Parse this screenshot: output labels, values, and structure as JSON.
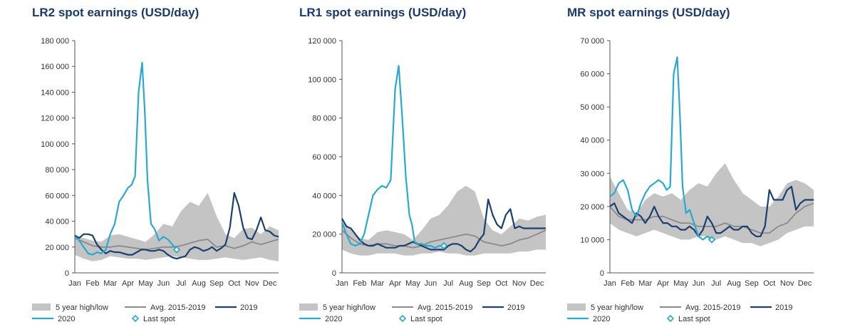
{
  "colors": {
    "title": "#1a3a6e",
    "band": "#c4c4c4",
    "avg": "#8a8a8a",
    "y2019": "#1b3f6e",
    "y2020": "#2aa9cf",
    "axis": "#555555",
    "text": "#333333"
  },
  "legend_labels": {
    "band": "5 year high/low",
    "avg": "Avg. 2015-2019",
    "y2019": "2019",
    "y2020": "2020",
    "last": "Last spot"
  },
  "chart_data": [
    {
      "type": "line",
      "title": "LR2 spot earnings (USD/day)",
      "xlabel": "",
      "ylabel": "",
      "x_categories": [
        "Jan",
        "Feb",
        "Mar",
        "Apr",
        "May",
        "Jun",
        "Jul",
        "Aug",
        "Sep",
        "Oct",
        "Nov",
        "Dec"
      ],
      "ylim": [
        0,
        180000
      ],
      "yticks": [
        0,
        20000,
        40000,
        60000,
        80000,
        100000,
        120000,
        140000,
        160000,
        180000
      ],
      "ytick_labels": [
        "0",
        "20 000",
        "40 000",
        "60 000",
        "80 000",
        "100 000",
        "120 000",
        "140 000",
        "160 000",
        "180 000"
      ],
      "grid": false,
      "legend_position": "bottom",
      "band": {
        "name": "5 year high/low",
        "x": [
          1,
          1.5,
          2,
          2.5,
          3,
          3.5,
          4,
          4.5,
          5,
          5.5,
          6,
          6.5,
          7,
          7.5,
          8,
          8.5,
          9,
          9.5,
          10,
          10.5,
          11,
          11.5,
          12,
          12.5
        ],
        "high": [
          29000,
          27000,
          25000,
          24000,
          29000,
          30000,
          28000,
          26000,
          24000,
          30000,
          38000,
          36000,
          48000,
          55000,
          52000,
          62000,
          44000,
          30000,
          27000,
          34000,
          35000,
          30000,
          36000,
          33000
        ],
        "low": [
          14000,
          11000,
          9000,
          10000,
          13000,
          12000,
          11000,
          11000,
          10000,
          11000,
          12000,
          13000,
          12000,
          11000,
          10000,
          10000,
          11000,
          12000,
          11000,
          10000,
          11000,
          12000,
          10000,
          9000
        ]
      },
      "series": [
        {
          "name": "Avg. 2015-2019",
          "x": [
            1,
            1.5,
            2,
            2.5,
            3,
            3.5,
            4,
            4.5,
            5,
            5.5,
            6,
            6.5,
            7,
            7.5,
            8,
            8.5,
            9,
            9.5,
            10,
            10.5,
            11,
            11.5,
            12,
            12.5
          ],
          "values": [
            27000,
            24000,
            21000,
            20000,
            20000,
            21000,
            20000,
            19000,
            18000,
            19000,
            20000,
            20000,
            21000,
            23000,
            25000,
            26000,
            20000,
            21000,
            19000,
            21000,
            24000,
            22000,
            24000,
            26000
          ]
        },
        {
          "name": "2019",
          "x": [
            1,
            1.25,
            1.5,
            1.75,
            2,
            2.25,
            2.5,
            2.75,
            3,
            3.25,
            3.5,
            3.75,
            4,
            4.25,
            4.5,
            4.75,
            5,
            5.25,
            5.5,
            5.75,
            6,
            6.25,
            6.5,
            6.75,
            7,
            7.25,
            7.5,
            7.75,
            8,
            8.25,
            8.5,
            8.75,
            9,
            9.25,
            9.5,
            9.75,
            10,
            10.25,
            10.5,
            10.75,
            11,
            11.25,
            11.5,
            11.75,
            12,
            12.25,
            12.5
          ],
          "values": [
            29000,
            27000,
            30000,
            30000,
            29000,
            22000,
            18000,
            15000,
            17000,
            16000,
            16000,
            15000,
            14000,
            14000,
            16000,
            18000,
            18000,
            17000,
            17000,
            18000,
            17000,
            14000,
            12000,
            11000,
            12000,
            13000,
            18000,
            20000,
            19000,
            17000,
            18000,
            20000,
            17000,
            19000,
            22000,
            35000,
            62000,
            52000,
            35000,
            27000,
            26000,
            33000,
            43000,
            33000,
            32000,
            29000,
            28000
          ]
        },
        {
          "name": "2020",
          "x": [
            1,
            1.25,
            1.5,
            1.75,
            2,
            2.25,
            2.5,
            2.75,
            3,
            3.25,
            3.5,
            3.75,
            4,
            4.2,
            4.4,
            4.6,
            4.8,
            4.95,
            5.1,
            5.3,
            5.5,
            5.75,
            6,
            6.25,
            6.5,
            6.75
          ],
          "values": [
            28000,
            25000,
            20000,
            15000,
            14000,
            16000,
            15000,
            18000,
            30000,
            38000,
            55000,
            60000,
            66000,
            68000,
            75000,
            140000,
            163000,
            125000,
            72000,
            38000,
            34000,
            25000,
            28000,
            26000,
            22000,
            18000
          ]
        },
        {
          "name": "Last spot",
          "x": [
            6.75
          ],
          "values": [
            18000
          ]
        }
      ]
    },
    {
      "type": "line",
      "title": "LR1 spot earnings (USD/day)",
      "xlabel": "",
      "ylabel": "",
      "x_categories": [
        "Jan",
        "Feb",
        "Mar",
        "Apr",
        "May",
        "Jun",
        "Jul",
        "Aug",
        "Sep",
        "Oct",
        "Nov",
        "Dec"
      ],
      "ylim": [
        0,
        120000
      ],
      "yticks": [
        0,
        20000,
        40000,
        60000,
        80000,
        100000,
        120000
      ],
      "ytick_labels": [
        "0",
        "20 000",
        "40 000",
        "60 000",
        "80 000",
        "100 000",
        "120 000"
      ],
      "grid": false,
      "legend_position": "bottom",
      "band": {
        "name": "5 year high/low",
        "x": [
          1,
          1.5,
          2,
          2.5,
          3,
          3.5,
          4,
          4.5,
          5,
          5.5,
          6,
          6.5,
          7,
          7.5,
          8,
          8.5,
          9,
          9.5,
          10,
          10.5,
          11,
          11.5,
          12,
          12.5
        ],
        "high": [
          26000,
          23000,
          18000,
          17000,
          21000,
          22000,
          21000,
          20000,
          17000,
          22000,
          28000,
          30000,
          35000,
          42000,
          45000,
          42000,
          28000,
          22000,
          20000,
          24000,
          28000,
          27000,
          29000,
          30000
        ],
        "low": [
          12000,
          10000,
          9000,
          9000,
          10000,
          10000,
          10000,
          9000,
          9000,
          10000,
          10000,
          11000,
          10000,
          10000,
          9000,
          9000,
          10000,
          10000,
          10000,
          10000,
          11000,
          11000,
          12000,
          12000
        ]
      },
      "series": [
        {
          "name": "Avg. 2015-2019",
          "x": [
            1,
            1.5,
            2,
            2.5,
            3,
            3.5,
            4,
            4.5,
            5,
            5.5,
            6,
            6.5,
            7,
            7.5,
            8,
            8.5,
            9,
            9.5,
            10,
            10.5,
            11,
            11.5,
            12,
            12.5
          ],
          "values": [
            22000,
            18000,
            15000,
            14000,
            15000,
            15000,
            14000,
            14000,
            13000,
            14000,
            16000,
            17000,
            18000,
            19000,
            20000,
            19000,
            16000,
            15000,
            14000,
            15000,
            17000,
            18000,
            20000,
            22000
          ]
        },
        {
          "name": "2019",
          "x": [
            1,
            1.25,
            1.5,
            1.75,
            2,
            2.25,
            2.5,
            2.75,
            3,
            3.25,
            3.5,
            3.75,
            4,
            4.25,
            4.5,
            4.75,
            5,
            5.25,
            5.5,
            5.75,
            6,
            6.25,
            6.5,
            6.75,
            7,
            7.25,
            7.5,
            7.75,
            8,
            8.25,
            8.5,
            8.75,
            9,
            9.25,
            9.5,
            9.75,
            10,
            10.25,
            10.5,
            10.75,
            11,
            11.25,
            11.5,
            11.75,
            12,
            12.25,
            12.5
          ],
          "values": [
            28000,
            24000,
            23000,
            20000,
            17000,
            15000,
            14000,
            14000,
            15000,
            14000,
            13000,
            13000,
            13000,
            14000,
            14000,
            15000,
            16000,
            15000,
            14000,
            13000,
            12000,
            12000,
            12000,
            12000,
            14000,
            15000,
            15000,
            14000,
            12000,
            11000,
            13000,
            17000,
            20000,
            38000,
            30000,
            25000,
            23000,
            30000,
            33000,
            23000,
            24000,
            23000,
            23000,
            23000,
            23000,
            23000,
            23000
          ]
        },
        {
          "name": "2020",
          "x": [
            1,
            1.25,
            1.5,
            1.75,
            2,
            2.25,
            2.5,
            2.75,
            3,
            3.25,
            3.5,
            3.75,
            4,
            4.2,
            4.4,
            4.6,
            4.8,
            4.95,
            5.1,
            5.3,
            5.5,
            5.75,
            6,
            6.25,
            6.5,
            6.75
          ],
          "values": [
            26000,
            20000,
            15000,
            14000,
            15000,
            20000,
            30000,
            40000,
            43000,
            45000,
            44000,
            48000,
            95000,
            107000,
            80000,
            50000,
            30000,
            25000,
            16000,
            15000,
            15000,
            14000,
            14000,
            13000,
            14000,
            14000
          ]
        },
        {
          "name": "Last spot",
          "x": [
            6.75
          ],
          "values": [
            14000
          ]
        }
      ]
    },
    {
      "type": "line",
      "title": "MR spot earnings (USD/day)",
      "xlabel": "",
      "ylabel": "",
      "x_categories": [
        "Jan",
        "Feb",
        "Mar",
        "Apr",
        "May",
        "Jun",
        "Jul",
        "Aug",
        "Sep",
        "Oct",
        "Nov",
        "Dec"
      ],
      "ylim": [
        0,
        70000
      ],
      "yticks": [
        0,
        10000,
        20000,
        30000,
        40000,
        50000,
        60000,
        70000
      ],
      "ytick_labels": [
        "0",
        "10 000",
        "20 000",
        "30 000",
        "40 000",
        "50 000",
        "60 000",
        "70 000"
      ],
      "grid": false,
      "legend_position": "bottom",
      "band": {
        "name": "5 year high/low",
        "x": [
          1,
          1.5,
          2,
          2.5,
          3,
          3.5,
          4,
          4.5,
          5,
          5.5,
          6,
          6.5,
          7,
          7.5,
          8,
          8.5,
          9,
          9.5,
          10,
          10.5,
          11,
          11.5,
          12,
          12.5
        ],
        "high": [
          29000,
          24000,
          19000,
          18000,
          22000,
          24000,
          23000,
          24000,
          22000,
          25000,
          27000,
          26000,
          30000,
          33000,
          28000,
          24000,
          22000,
          20000,
          20000,
          23000,
          27000,
          28000,
          27000,
          25000
        ],
        "low": [
          15000,
          13000,
          12000,
          11000,
          12000,
          13000,
          12000,
          11000,
          10000,
          10000,
          11000,
          11000,
          10000,
          11000,
          10000,
          9000,
          9000,
          8000,
          9000,
          10000,
          12000,
          13000,
          14000,
          14000
        ]
      },
      "series": [
        {
          "name": "Avg. 2015-2019",
          "x": [
            1,
            1.5,
            2,
            2.5,
            3,
            3.5,
            4,
            4.5,
            5,
            5.5,
            6,
            6.5,
            7,
            7.5,
            8,
            8.5,
            9,
            9.5,
            10,
            10.5,
            11,
            11.5,
            12,
            12.5
          ],
          "values": [
            20000,
            17000,
            16000,
            16000,
            16000,
            17000,
            17000,
            16000,
            15000,
            15000,
            14000,
            14000,
            14000,
            15000,
            14000,
            14000,
            13000,
            12000,
            12000,
            14000,
            15000,
            18000,
            20000,
            21000
          ]
        },
        {
          "name": "2019",
          "x": [
            1,
            1.25,
            1.5,
            1.75,
            2,
            2.25,
            2.5,
            2.75,
            3,
            3.25,
            3.5,
            3.75,
            4,
            4.25,
            4.5,
            4.75,
            5,
            5.25,
            5.5,
            5.75,
            6,
            6.25,
            6.5,
            6.75,
            7,
            7.25,
            7.5,
            7.75,
            8,
            8.25,
            8.5,
            8.75,
            9,
            9.25,
            9.5,
            9.75,
            10,
            10.25,
            10.5,
            10.75,
            11,
            11.25,
            11.5,
            11.75,
            12,
            12.25,
            12.5
          ],
          "values": [
            20000,
            21000,
            18000,
            17000,
            16000,
            15000,
            18000,
            17000,
            15000,
            17000,
            20000,
            17000,
            15000,
            15000,
            14000,
            14000,
            13000,
            13000,
            14000,
            13000,
            11000,
            13000,
            17000,
            15000,
            12000,
            12000,
            13000,
            14000,
            13000,
            13000,
            14000,
            14000,
            12000,
            11000,
            11000,
            14000,
            25000,
            22000,
            22000,
            22000,
            25000,
            26000,
            19000,
            21000,
            22000,
            22000,
            22000
          ]
        },
        {
          "name": "2020",
          "x": [
            1,
            1.25,
            1.5,
            1.75,
            2,
            2.25,
            2.5,
            2.75,
            3,
            3.25,
            3.5,
            3.75,
            4,
            4.2,
            4.4,
            4.6,
            4.8,
            4.95,
            5.1,
            5.3,
            5.5,
            5.75,
            6,
            6.25,
            6.5,
            6.75
          ],
          "values": [
            23000,
            24000,
            27000,
            28000,
            25000,
            19000,
            17000,
            21000,
            24000,
            26000,
            27000,
            28000,
            27000,
            25000,
            26000,
            60000,
            65000,
            48000,
            26000,
            18000,
            19000,
            15000,
            11000,
            10000,
            11000,
            10000
          ]
        },
        {
          "name": "Last spot",
          "x": [
            6.75
          ],
          "values": [
            10000
          ]
        }
      ]
    }
  ]
}
